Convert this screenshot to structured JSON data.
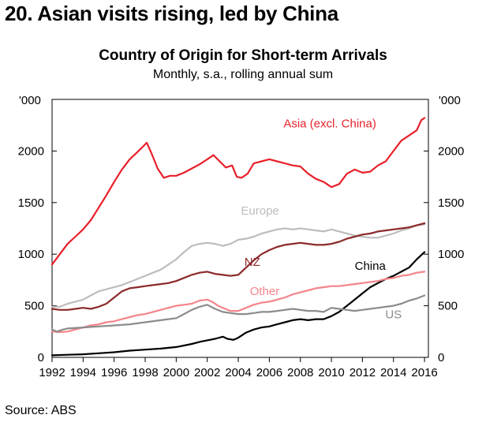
{
  "heading": "20. Asian visits rising, led by China",
  "source": "Source: ABS",
  "chart_data": {
    "type": "line",
    "title": "Country of Origin for Short-term Arrivals",
    "subtitle": "Monthly, s.a., rolling annual sum",
    "y_unit_left": "'000",
    "y_unit_right": "'000",
    "xlim": [
      1992,
      2016.25
    ],
    "ylim": [
      0,
      2500
    ],
    "x_ticks": [
      "1992",
      "1994",
      "1996",
      "1998",
      "2000",
      "2002",
      "2004",
      "2006",
      "2008",
      "2010",
      "2012",
      "2014",
      "2016"
    ],
    "y_ticks": [
      "0",
      "500",
      "1000",
      "1500",
      "2000"
    ],
    "grid": false,
    "series": [
      {
        "name": "Asia (excl. China)",
        "color": "#e8202a",
        "label_pos": [
          2009.9,
          2230
        ],
        "points": [
          [
            1992,
            900
          ],
          [
            1992.5,
            1000
          ],
          [
            1993,
            1100
          ],
          [
            1993.5,
            1170
          ],
          [
            1994,
            1240
          ],
          [
            1994.5,
            1330
          ],
          [
            1995,
            1450
          ],
          [
            1995.5,
            1570
          ],
          [
            1996,
            1700
          ],
          [
            1996.5,
            1820
          ],
          [
            1997,
            1920
          ],
          [
            1997.5,
            1990
          ],
          [
            1997.9,
            2050
          ],
          [
            1998.1,
            2080
          ],
          [
            1998.4,
            1980
          ],
          [
            1998.8,
            1830
          ],
          [
            1999.2,
            1740
          ],
          [
            1999.6,
            1760
          ],
          [
            2000,
            1760
          ],
          [
            2000.5,
            1790
          ],
          [
            2001,
            1830
          ],
          [
            2001.5,
            1870
          ],
          [
            2002,
            1920
          ],
          [
            2002.4,
            1960
          ],
          [
            2002.8,
            1900
          ],
          [
            2003.2,
            1840
          ],
          [
            2003.6,
            1860
          ],
          [
            2003.9,
            1750
          ],
          [
            2004.2,
            1740
          ],
          [
            2004.6,
            1780
          ],
          [
            2005,
            1880
          ],
          [
            2005.5,
            1900
          ],
          [
            2006,
            1920
          ],
          [
            2006.5,
            1900
          ],
          [
            2007,
            1880
          ],
          [
            2007.5,
            1860
          ],
          [
            2008,
            1850
          ],
          [
            2008.5,
            1780
          ],
          [
            2009,
            1730
          ],
          [
            2009.5,
            1700
          ],
          [
            2010,
            1650
          ],
          [
            2010.5,
            1680
          ],
          [
            2011,
            1780
          ],
          [
            2011.5,
            1820
          ],
          [
            2012,
            1790
          ],
          [
            2012.5,
            1800
          ],
          [
            2013,
            1860
          ],
          [
            2013.5,
            1900
          ],
          [
            2014,
            2000
          ],
          [
            2014.5,
            2100
          ],
          [
            2015,
            2150
          ],
          [
            2015.5,
            2200
          ],
          [
            2015.8,
            2300
          ],
          [
            2016,
            2320
          ]
        ]
      },
      {
        "name": "Europe",
        "color": "#bdbdbd",
        "label_pos": [
          2005.4,
          1385
        ],
        "points": [
          [
            1992,
            490
          ],
          [
            1992.5,
            490
          ],
          [
            1993,
            520
          ],
          [
            1993.5,
            540
          ],
          [
            1994,
            560
          ],
          [
            1994.5,
            600
          ],
          [
            1995,
            640
          ],
          [
            1995.5,
            660
          ],
          [
            1996,
            680
          ],
          [
            1996.5,
            700
          ],
          [
            1997,
            730
          ],
          [
            1997.5,
            760
          ],
          [
            1998,
            790
          ],
          [
            1998.5,
            820
          ],
          [
            1999,
            850
          ],
          [
            1999.5,
            900
          ],
          [
            2000,
            950
          ],
          [
            2000.5,
            1020
          ],
          [
            2001,
            1080
          ],
          [
            2001.5,
            1100
          ],
          [
            2002,
            1110
          ],
          [
            2002.5,
            1100
          ],
          [
            2003,
            1080
          ],
          [
            2003.5,
            1100
          ],
          [
            2004,
            1140
          ],
          [
            2004.5,
            1150
          ],
          [
            2005,
            1170
          ],
          [
            2005.5,
            1200
          ],
          [
            2006,
            1220
          ],
          [
            2006.5,
            1240
          ],
          [
            2007,
            1250
          ],
          [
            2007.5,
            1240
          ],
          [
            2008,
            1250
          ],
          [
            2008.5,
            1240
          ],
          [
            2009,
            1230
          ],
          [
            2009.5,
            1220
          ],
          [
            2010,
            1240
          ],
          [
            2010.5,
            1220
          ],
          [
            2011,
            1200
          ],
          [
            2011.5,
            1180
          ],
          [
            2012,
            1170
          ],
          [
            2012.5,
            1160
          ],
          [
            2013,
            1160
          ],
          [
            2013.5,
            1180
          ],
          [
            2014,
            1200
          ],
          [
            2014.5,
            1230
          ],
          [
            2015,
            1250
          ],
          [
            2015.5,
            1280
          ],
          [
            2016,
            1290
          ]
        ]
      },
      {
        "name": "NZ",
        "color": "#8b2a2a",
        "label_pos": [
          2004.9,
          885
        ],
        "points": [
          [
            1992,
            470
          ],
          [
            1992.5,
            460
          ],
          [
            1993,
            460
          ],
          [
            1993.5,
            470
          ],
          [
            1994,
            480
          ],
          [
            1994.5,
            470
          ],
          [
            1995,
            490
          ],
          [
            1995.5,
            520
          ],
          [
            1996,
            580
          ],
          [
            1996.5,
            640
          ],
          [
            1997,
            670
          ],
          [
            1997.5,
            680
          ],
          [
            1998,
            690
          ],
          [
            1998.5,
            700
          ],
          [
            1999,
            710
          ],
          [
            1999.5,
            720
          ],
          [
            2000,
            740
          ],
          [
            2000.5,
            770
          ],
          [
            2001,
            800
          ],
          [
            2001.5,
            820
          ],
          [
            2002,
            830
          ],
          [
            2002.5,
            810
          ],
          [
            2003,
            800
          ],
          [
            2003.5,
            790
          ],
          [
            2004,
            800
          ],
          [
            2004.5,
            870
          ],
          [
            2005,
            940
          ],
          [
            2005.5,
            1000
          ],
          [
            2006,
            1040
          ],
          [
            2006.5,
            1070
          ],
          [
            2007,
            1090
          ],
          [
            2007.5,
            1100
          ],
          [
            2008,
            1110
          ],
          [
            2008.5,
            1100
          ],
          [
            2009,
            1090
          ],
          [
            2009.5,
            1090
          ],
          [
            2010,
            1100
          ],
          [
            2010.5,
            1120
          ],
          [
            2011,
            1150
          ],
          [
            2011.5,
            1170
          ],
          [
            2012,
            1190
          ],
          [
            2012.5,
            1200
          ],
          [
            2013,
            1220
          ],
          [
            2013.5,
            1230
          ],
          [
            2014,
            1240
          ],
          [
            2014.5,
            1250
          ],
          [
            2015,
            1260
          ],
          [
            2015.5,
            1280
          ],
          [
            2016,
            1300
          ]
        ]
      },
      {
        "name": "China",
        "color": "#000000",
        "label_pos": [
          2012.5,
          850
        ],
        "points": [
          [
            1992,
            20
          ],
          [
            1993,
            25
          ],
          [
            1994,
            30
          ],
          [
            1995,
            40
          ],
          [
            1996,
            50
          ],
          [
            1997,
            65
          ],
          [
            1998,
            75
          ],
          [
            1999,
            85
          ],
          [
            2000,
            100
          ],
          [
            2000.5,
            115
          ],
          [
            2001,
            130
          ],
          [
            2001.5,
            150
          ],
          [
            2002,
            165
          ],
          [
            2002.5,
            180
          ],
          [
            2003,
            200
          ],
          [
            2003.3,
            180
          ],
          [
            2003.7,
            170
          ],
          [
            2004,
            190
          ],
          [
            2004.5,
            240
          ],
          [
            2005,
            270
          ],
          [
            2005.5,
            290
          ],
          [
            2006,
            300
          ],
          [
            2006.5,
            320
          ],
          [
            2007,
            340
          ],
          [
            2007.5,
            360
          ],
          [
            2008,
            370
          ],
          [
            2008.5,
            360
          ],
          [
            2009,
            370
          ],
          [
            2009.5,
            370
          ],
          [
            2010,
            400
          ],
          [
            2010.5,
            440
          ],
          [
            2011,
            500
          ],
          [
            2011.5,
            560
          ],
          [
            2012,
            620
          ],
          [
            2012.5,
            680
          ],
          [
            2013,
            720
          ],
          [
            2013.5,
            760
          ],
          [
            2014,
            790
          ],
          [
            2014.5,
            830
          ],
          [
            2015,
            870
          ],
          [
            2015.5,
            950
          ],
          [
            2016,
            1020
          ]
        ]
      },
      {
        "name": "Other",
        "color": "#f4858b",
        "label_pos": [
          2005.7,
          605
        ],
        "points": [
          [
            1992,
            250
          ],
          [
            1992.5,
            245
          ],
          [
            1993,
            250
          ],
          [
            1993.5,
            270
          ],
          [
            1994,
            290
          ],
          [
            1994.5,
            310
          ],
          [
            1995,
            320
          ],
          [
            1995.5,
            340
          ],
          [
            1996,
            350
          ],
          [
            1996.5,
            370
          ],
          [
            1997,
            390
          ],
          [
            1997.5,
            410
          ],
          [
            1998,
            420
          ],
          [
            1998.5,
            440
          ],
          [
            1999,
            460
          ],
          [
            1999.5,
            480
          ],
          [
            2000,
            500
          ],
          [
            2000.5,
            510
          ],
          [
            2001,
            520
          ],
          [
            2001.5,
            550
          ],
          [
            2002,
            560
          ],
          [
            2002.3,
            540
          ],
          [
            2002.7,
            500
          ],
          [
            2003,
            480
          ],
          [
            2003.5,
            450
          ],
          [
            2004,
            450
          ],
          [
            2004.5,
            480
          ],
          [
            2005,
            510
          ],
          [
            2005.5,
            530
          ],
          [
            2006,
            540
          ],
          [
            2006.5,
            560
          ],
          [
            2007,
            580
          ],
          [
            2007.5,
            610
          ],
          [
            2008,
            630
          ],
          [
            2008.5,
            650
          ],
          [
            2009,
            670
          ],
          [
            2009.5,
            680
          ],
          [
            2010,
            690
          ],
          [
            2010.5,
            690
          ],
          [
            2011,
            700
          ],
          [
            2011.5,
            710
          ],
          [
            2012,
            720
          ],
          [
            2012.5,
            730
          ],
          [
            2013,
            740
          ],
          [
            2013.5,
            760
          ],
          [
            2014,
            770
          ],
          [
            2014.5,
            790
          ],
          [
            2015,
            800
          ],
          [
            2015.5,
            820
          ],
          [
            2016,
            830
          ]
        ]
      },
      {
        "name": "US",
        "color": "#8c8c8c",
        "label_pos": [
          2014.0,
          380
        ],
        "points": [
          [
            1992,
            270
          ],
          [
            1992.3,
            250
          ],
          [
            1992.7,
            270
          ],
          [
            1993,
            280
          ],
          [
            1994,
            290
          ],
          [
            1995,
            300
          ],
          [
            1996,
            310
          ],
          [
            1997,
            320
          ],
          [
            1998,
            340
          ],
          [
            1999,
            360
          ],
          [
            2000,
            380
          ],
          [
            2000.5,
            420
          ],
          [
            2001,
            460
          ],
          [
            2001.5,
            490
          ],
          [
            2002,
            510
          ],
          [
            2002.5,
            470
          ],
          [
            2003,
            440
          ],
          [
            2003.5,
            430
          ],
          [
            2004,
            420
          ],
          [
            2004.5,
            420
          ],
          [
            2005,
            430
          ],
          [
            2005.5,
            440
          ],
          [
            2006,
            440
          ],
          [
            2006.5,
            450
          ],
          [
            2007,
            460
          ],
          [
            2007.5,
            470
          ],
          [
            2008,
            460
          ],
          [
            2008.5,
            450
          ],
          [
            2009,
            450
          ],
          [
            2009.5,
            440
          ],
          [
            2010,
            480
          ],
          [
            2010.5,
            470
          ],
          [
            2011,
            460
          ],
          [
            2011.5,
            450
          ],
          [
            2012,
            460
          ],
          [
            2012.5,
            470
          ],
          [
            2013,
            480
          ],
          [
            2013.5,
            490
          ],
          [
            2014,
            500
          ],
          [
            2014.5,
            520
          ],
          [
            2015,
            550
          ],
          [
            2015.5,
            570
          ],
          [
            2016,
            600
          ]
        ]
      }
    ]
  }
}
